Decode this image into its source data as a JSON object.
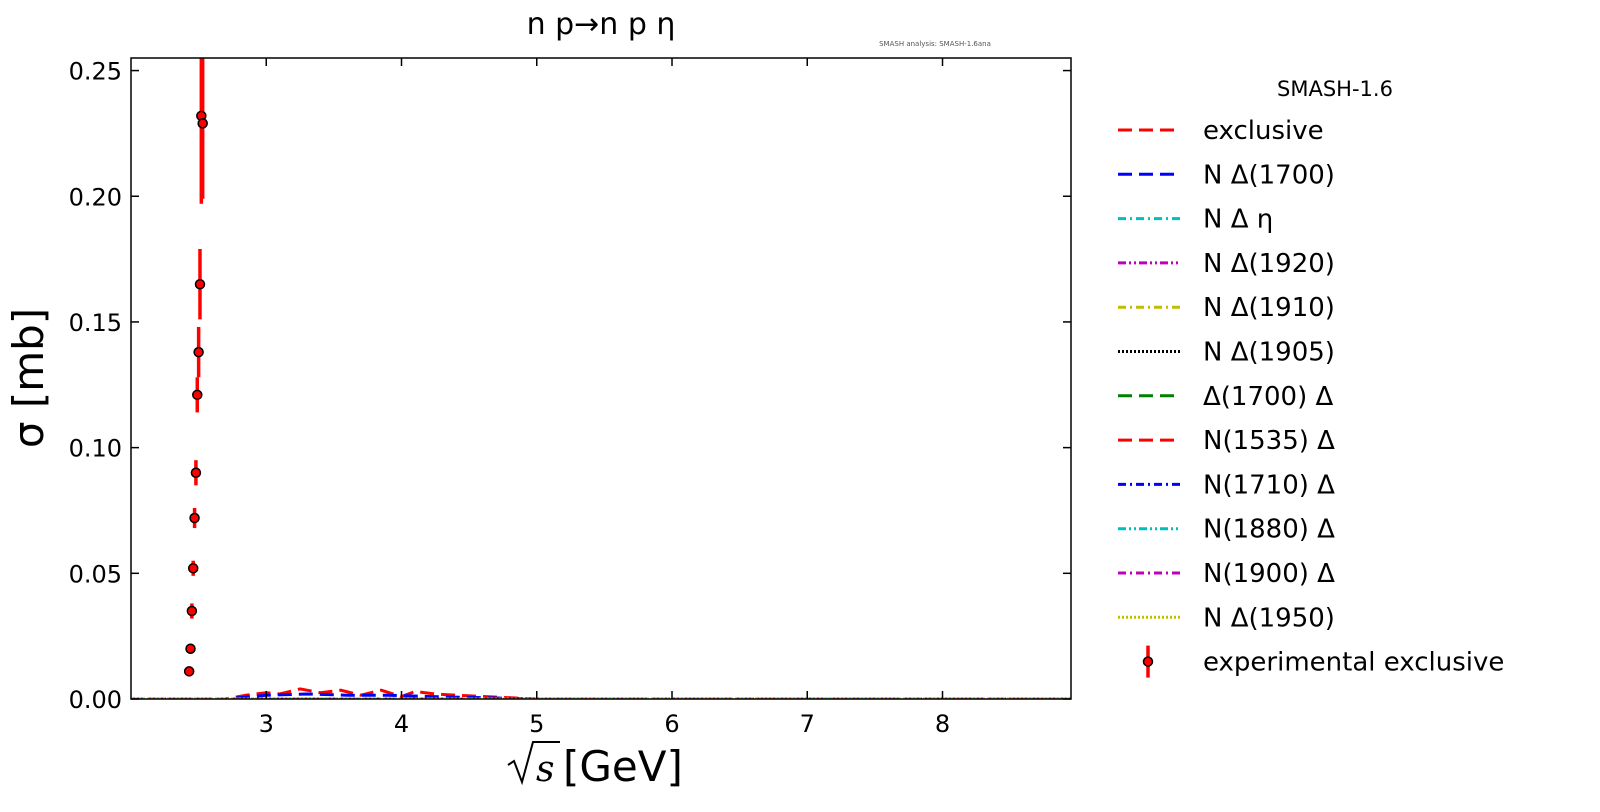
{
  "chart_data": {
    "type": "line",
    "title": "n p→n p η",
    "watermark": "SMASH analysis: SMASH-1.6ana",
    "xlabel_radicand": "s",
    "xlabel_unit": "[GeV]",
    "ylabel": "σ [mb]",
    "xlim": [
      2.0,
      8.95
    ],
    "ylim": [
      0.0,
      0.255
    ],
    "x_ticks": [
      3,
      4,
      5,
      6,
      7,
      8
    ],
    "y_ticks": [
      0.0,
      0.05,
      0.1,
      0.15,
      0.2,
      0.25
    ],
    "y_tick_labels": [
      "0.00",
      "0.05",
      "0.10",
      "0.15",
      "0.20",
      "0.25"
    ],
    "grid": false,
    "legend": {
      "title": "SMASH-1.6",
      "placement": "outside-right"
    },
    "series": [
      {
        "name": "exclusive",
        "color": "#ff0000",
        "style": "dashed",
        "x": [
          2.0,
          2.7,
          2.85,
          3.0,
          3.1,
          3.25,
          3.4,
          3.55,
          3.7,
          3.85,
          4.0,
          4.1,
          4.25,
          4.4,
          4.6,
          5.0,
          8.95
        ],
        "y": [
          0.0,
          0.0,
          0.0015,
          0.0025,
          0.002,
          0.004,
          0.0025,
          0.0035,
          0.0015,
          0.0035,
          0.001,
          0.003,
          0.002,
          0.0015,
          0.001,
          0.0,
          0.0
        ]
      },
      {
        "name": "N Δ(1700)",
        "color": "#0000ff",
        "style": "dashed",
        "x": [
          2.0,
          2.7,
          3.0,
          3.3,
          3.6,
          3.9,
          4.2,
          4.6,
          5.0,
          8.95
        ],
        "y": [
          0.0,
          0.0,
          0.0015,
          0.002,
          0.0015,
          0.0015,
          0.001,
          0.0005,
          0.0,
          0.0
        ]
      },
      {
        "name": "N Δ η",
        "color": "#00bfbf",
        "style": "dashdot",
        "x": [
          2.0,
          8.95
        ],
        "y": [
          0.0,
          0.0
        ]
      },
      {
        "name": "N Δ(1920)",
        "color": "#bf00bf",
        "style": "dashdotdot",
        "x": [
          2.0,
          8.95
        ],
        "y": [
          0.0,
          0.0
        ]
      },
      {
        "name": "N Δ(1910)",
        "color": "#bfbf00",
        "style": "dashdot",
        "x": [
          2.0,
          8.95
        ],
        "y": [
          0.0,
          0.0
        ]
      },
      {
        "name": "N Δ(1905)",
        "color": "#000000",
        "style": "dotted",
        "x": [
          2.0,
          8.95
        ],
        "y": [
          0.0,
          0.0
        ]
      },
      {
        "name": "Δ(1700) Δ",
        "color": "#008000",
        "style": "dashed",
        "x": [
          2.0,
          8.95
        ],
        "y": [
          0.0,
          0.0
        ]
      },
      {
        "name": "N(1535) Δ",
        "color": "#ff0000",
        "style": "dashed",
        "x": [
          2.0,
          8.95
        ],
        "y": [
          0.0,
          0.0
        ]
      },
      {
        "name": "N(1710) Δ",
        "color": "#0000ff",
        "style": "dashdot",
        "x": [
          2.0,
          8.95
        ],
        "y": [
          0.0,
          0.0
        ]
      },
      {
        "name": "N(1880) Δ",
        "color": "#00bfbf",
        "style": "dashdotdot",
        "x": [
          2.0,
          8.95
        ],
        "y": [
          0.0,
          0.0
        ]
      },
      {
        "name": "N(1900) Δ",
        "color": "#bf00bf",
        "style": "dashdot",
        "x": [
          2.0,
          8.95
        ],
        "y": [
          0.0,
          0.0
        ]
      },
      {
        "name": "N Δ(1950)",
        "color": "#bfbf00",
        "style": "dotted",
        "x": [
          2.0,
          8.95
        ],
        "y": [
          0.0,
          0.0
        ]
      }
    ],
    "experimental": {
      "name": "experimental exclusive",
      "marker_color": "#ff0000",
      "edge_color": "#000000",
      "points": [
        {
          "x": 2.43,
          "y": 0.011,
          "err": 0.002
        },
        {
          "x": 2.44,
          "y": 0.02,
          "err": 0.002
        },
        {
          "x": 2.45,
          "y": 0.035,
          "err": 0.003
        },
        {
          "x": 2.46,
          "y": 0.052,
          "err": 0.003
        },
        {
          "x": 2.47,
          "y": 0.072,
          "err": 0.004
        },
        {
          "x": 2.48,
          "y": 0.09,
          "err": 0.005
        },
        {
          "x": 2.49,
          "y": 0.121,
          "err": 0.007
        },
        {
          "x": 2.5,
          "y": 0.138,
          "err": 0.01
        },
        {
          "x": 2.51,
          "y": 0.165,
          "err": 0.014
        },
        {
          "x": 2.52,
          "y": 0.232,
          "err": 0.035
        },
        {
          "x": 2.53,
          "y": 0.229,
          "err": 0.03
        }
      ]
    }
  }
}
